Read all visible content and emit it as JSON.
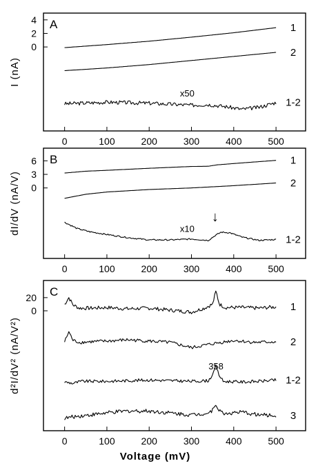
{
  "figure": {
    "xlabel": "Voltage  (mV)",
    "x_ticks": [
      0,
      100,
      200,
      300,
      400,
      500
    ]
  },
  "chart_data": [
    {
      "type": "line",
      "panel": "A",
      "ylabel": "I  (nA)",
      "y_ticks": [
        0,
        2,
        4
      ],
      "ylim": [
        -12.4,
        5.0
      ],
      "xlim": [
        -50,
        570
      ],
      "grid": false,
      "annotations": [
        {
          "text": "x50",
          "x": 290,
          "y": -7.3
        }
      ],
      "series": [
        {
          "name": "1",
          "noise": 0,
          "seed": 1,
          "x": [
            0,
            100,
            200,
            300,
            400,
            500
          ],
          "y": [
            -0.1,
            0.35,
            0.85,
            1.45,
            2.1,
            2.85
          ]
        },
        {
          "name": "2",
          "noise": 0,
          "seed": 2,
          "x": [
            0,
            100,
            200,
            300,
            400,
            500
          ],
          "y": [
            -3.5,
            -3.1,
            -2.6,
            -2.0,
            -1.4,
            -0.8
          ]
        },
        {
          "name": "1-2",
          "noise": 0.28,
          "seed": 3,
          "x": [
            0,
            100,
            200,
            300,
            340,
            380,
            420,
            460,
            500
          ],
          "y": [
            -8.4,
            -8.15,
            -8.3,
            -8.6,
            -8.5,
            -8.8,
            -9.2,
            -8.9,
            -8.2
          ]
        }
      ]
    },
    {
      "type": "line",
      "panel": "B",
      "ylabel": "dI/dV  (nA/V)",
      "y_ticks": [
        0,
        3,
        6
      ],
      "ylim": [
        -15.6,
        8.8
      ],
      "xlim": [
        -50,
        570
      ],
      "grid": false,
      "annotations": [
        {
          "text": "x10",
          "x": 290,
          "y": -9.7
        },
        {
          "text": "↓",
          "x": 356,
          "y": -7.4
        }
      ],
      "series": [
        {
          "name": "1",
          "noise": 0,
          "seed": 4,
          "x": [
            0,
            50,
            100,
            200,
            300,
            340,
            360,
            400,
            450,
            500
          ],
          "y": [
            3.3,
            3.7,
            3.9,
            4.35,
            4.75,
            4.8,
            5.1,
            5.4,
            5.75,
            6.1
          ]
        },
        {
          "name": "2",
          "noise": 0,
          "seed": 5,
          "x": [
            0,
            50,
            100,
            200,
            300,
            400,
            500
          ],
          "y": [
            -2.3,
            -1.4,
            -0.9,
            -0.35,
            0.0,
            0.5,
            1.1
          ]
        },
        {
          "name": "1-2",
          "noise": 0.15,
          "seed": 6,
          "x": [
            0,
            30,
            60,
            100,
            150,
            200,
            250,
            300,
            340,
            355,
            370,
            390,
            420,
            460,
            500
          ],
          "y": [
            -7.6,
            -9.0,
            -9.7,
            -10.3,
            -11.0,
            -11.5,
            -11.5,
            -11.3,
            -11.6,
            -10.6,
            -9.8,
            -9.9,
            -10.9,
            -11.6,
            -11.4
          ]
        }
      ]
    },
    {
      "type": "line",
      "panel": "C",
      "ylabel": "d²I/dV²  (nA/V²)",
      "y_ticks": [
        0,
        20
      ],
      "ylim": [
        -182,
        46
      ],
      "xlim": [
        -50,
        570
      ],
      "grid": false,
      "annotations": [
        {
          "text": "358",
          "x": 358,
          "y": -89
        }
      ],
      "series": [
        {
          "name": "1",
          "noise": 2.8,
          "seed": 7,
          "x": [
            0,
            10,
            20,
            35,
            60,
            100,
            150,
            200,
            250,
            300,
            330,
            350,
            358,
            366,
            380,
            420,
            460,
            500
          ],
          "y": [
            10,
            20,
            9,
            4,
            4,
            5,
            3,
            4,
            1,
            -2,
            4,
            10,
            30,
            10,
            5,
            5,
            4,
            6
          ]
        },
        {
          "name": "2",
          "noise": 2.5,
          "seed": 8,
          "x": [
            0,
            10,
            20,
            35,
            60,
            100,
            150,
            200,
            250,
            300,
            350,
            400,
            450,
            500
          ],
          "y": [
            -47,
            -32,
            -45,
            -48,
            -47,
            -46,
            -44,
            -46,
            -48,
            -56,
            -50,
            -45,
            -48,
            -47
          ]
        },
        {
          "name": "1-2",
          "noise": 2.3,
          "seed": 9,
          "x": [
            0,
            20,
            40,
            100,
            200,
            300,
            340,
            352,
            358,
            364,
            375,
            420,
            460,
            500
          ],
          "y": [
            -108,
            -110,
            -107,
            -107,
            -105,
            -107,
            -106,
            -95,
            -83,
            -96,
            -107,
            -108,
            -107,
            -105
          ]
        },
        {
          "name": "3",
          "noise": 3.0,
          "seed": 10,
          "x": [
            0,
            30,
            60,
            100,
            150,
            200,
            250,
            300,
            340,
            352,
            358,
            364,
            375,
            420,
            460,
            500
          ],
          "y": [
            -163,
            -160,
            -158,
            -155,
            -152,
            -152,
            -155,
            -158,
            -155,
            -150,
            -140,
            -150,
            -156,
            -154,
            -158,
            -159
          ]
        }
      ]
    }
  ]
}
